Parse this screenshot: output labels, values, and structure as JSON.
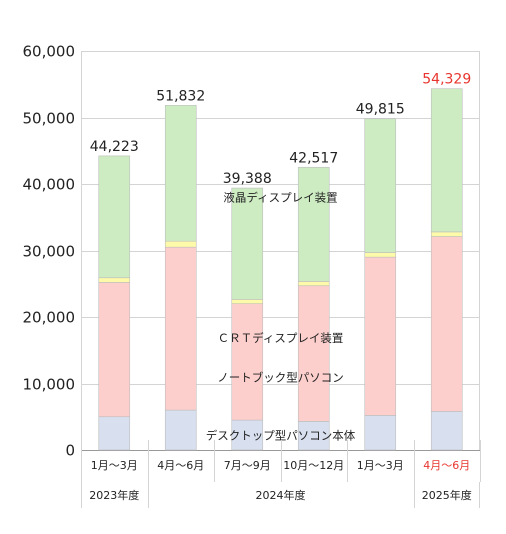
{
  "chart_data": {
    "type": "bar",
    "stacked": true,
    "categories": [
      "1月～3月",
      "4月～6月",
      "7月～9月",
      "10月～12月",
      "1月～3月",
      "4月～6月"
    ],
    "groups": [
      {
        "label": "2023年度",
        "span": 1
      },
      {
        "label": "2024年度",
        "span": 4
      },
      {
        "label": "2025年度",
        "span": 1
      }
    ],
    "series": [
      {
        "name": "デスクトップ型パソコン本体",
        "color": "#d8dfee",
        "values": [
          5000,
          6000,
          4500,
          4300,
          5200,
          5800
        ]
      },
      {
        "name": "ノートブック型パソコン",
        "color": "#fccfcc",
        "values": [
          20200,
          24500,
          17500,
          20400,
          23800,
          26300
        ]
      },
      {
        "name": "ＣＲＴディスプレイ装置",
        "color": "#fdfaa9",
        "values": [
          700,
          900,
          650,
          650,
          700,
          700
        ]
      },
      {
        "name": "液晶ディスプレイ装置",
        "color": "#cdecc2",
        "values": [
          18323,
          20432,
          16738,
          17167,
          20115,
          21529
        ]
      }
    ],
    "totals": [
      "44,223",
      "51,832",
      "39,388",
      "42,517",
      "49,815",
      "54,329"
    ],
    "highlight_index": 5,
    "highlight_color": "#e8352f",
    "ylim": [
      0,
      60000
    ],
    "yticks": [
      "0",
      "10,000",
      "20,000",
      "30,000",
      "40,000",
      "50,000",
      "60,000"
    ],
    "grid": true,
    "legend": "inline labels on bars"
  }
}
